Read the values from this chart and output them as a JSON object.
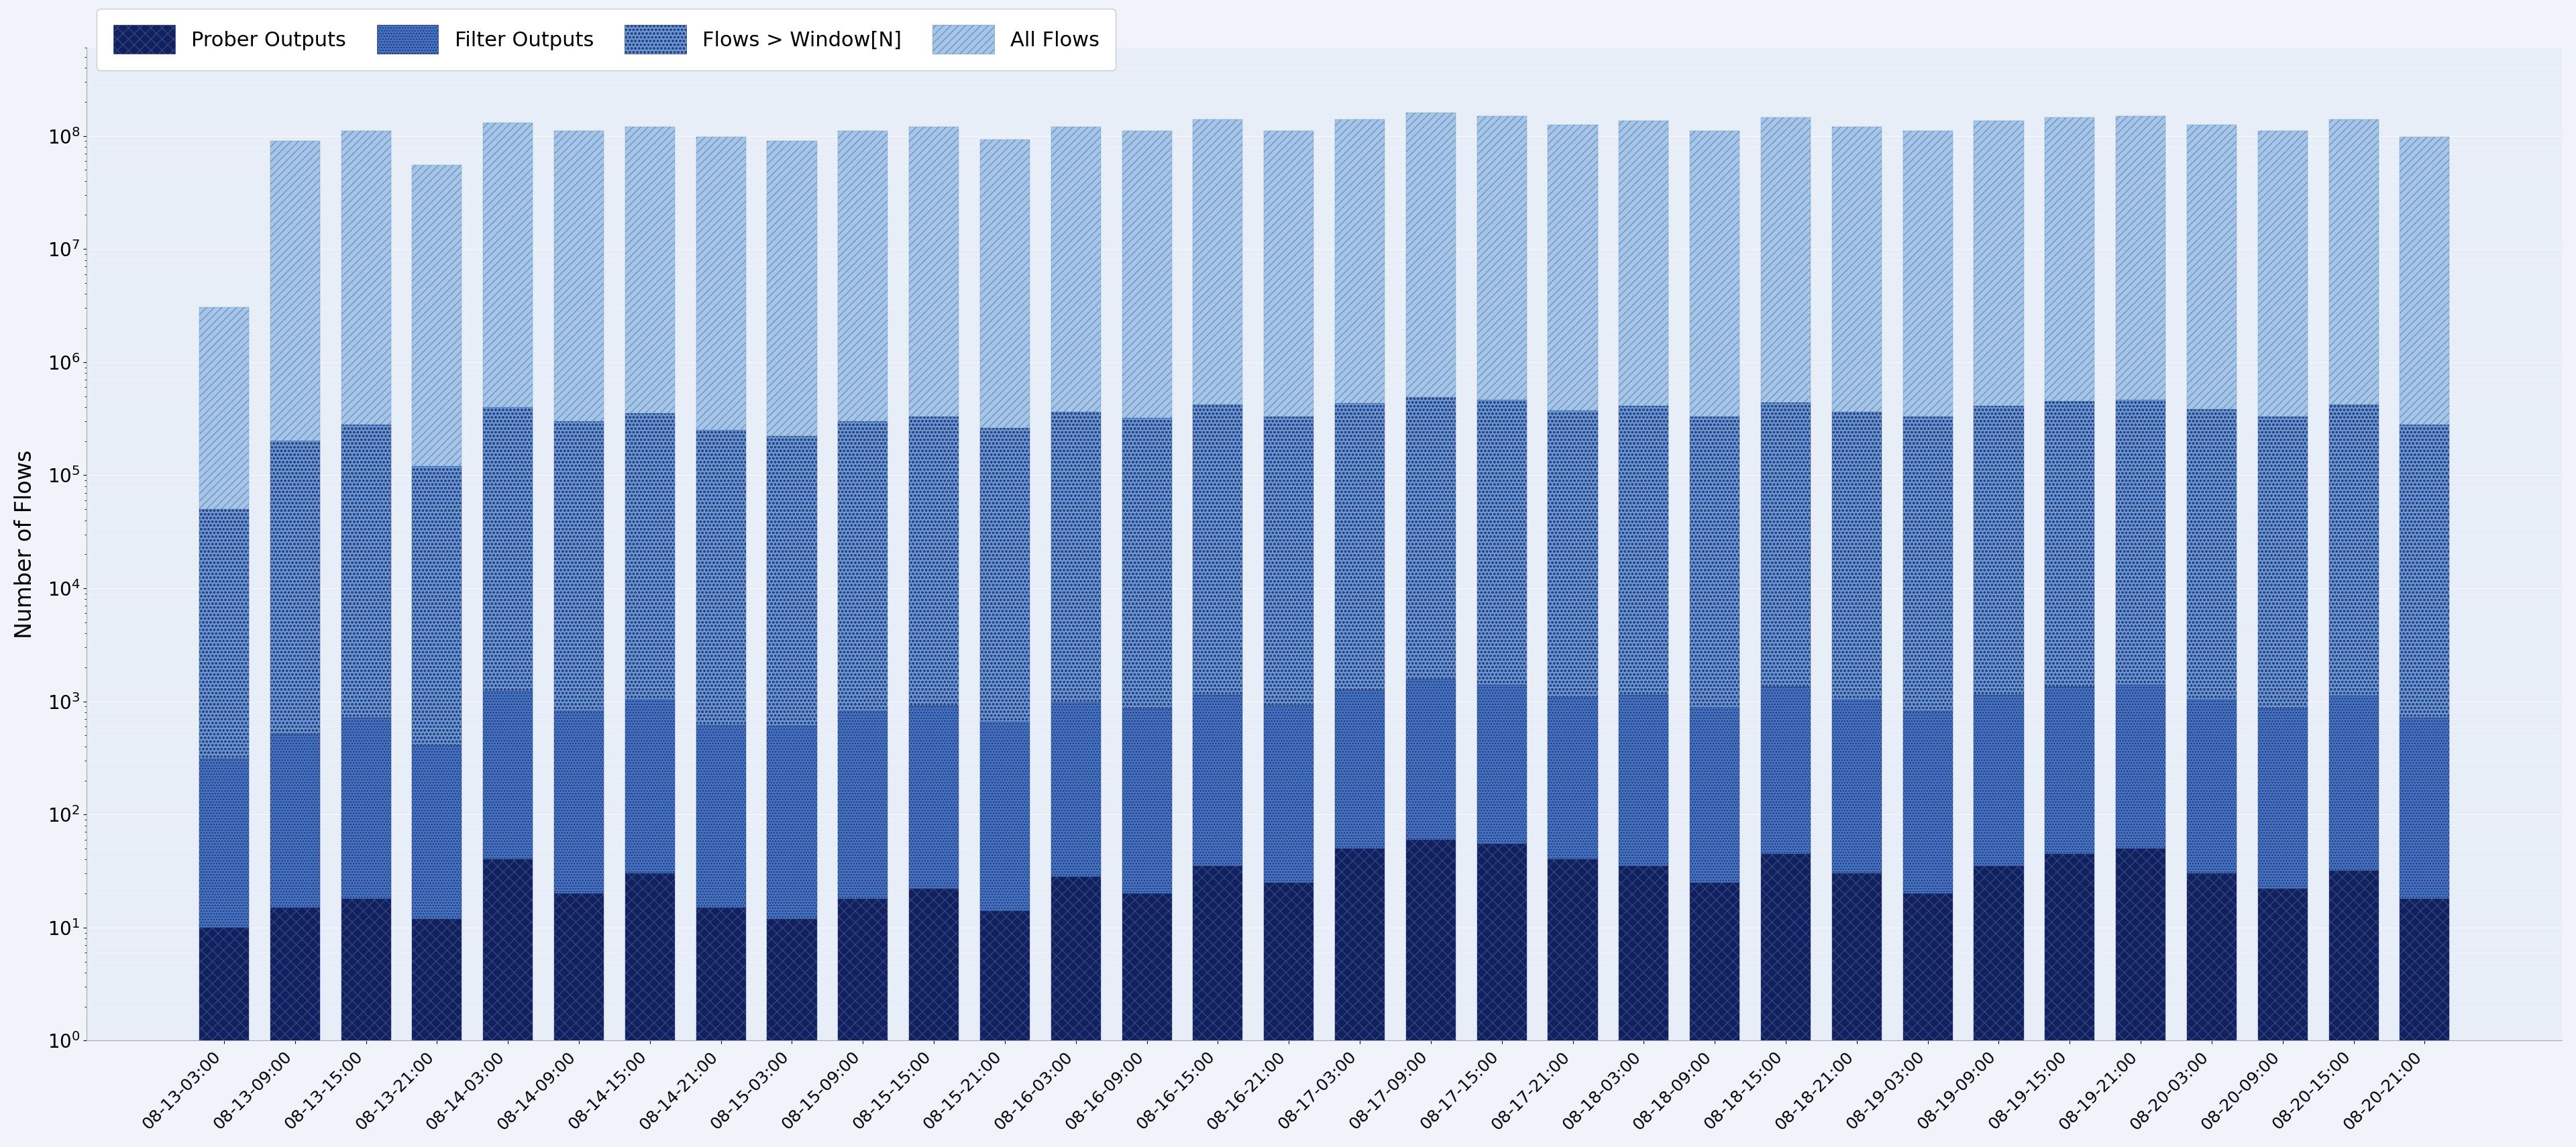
{
  "title": "",
  "ylabel": "Number of Flows",
  "xlabel": "",
  "background_color": "#f0f4fa",
  "plot_bg_color": "#e8eef8",
  "ylim_log": [
    1,
    500000000.0
  ],
  "series_labels": [
    "Prober Outputs",
    "Filter Outputs",
    "Flows > Window[N]",
    "All Flows"
  ],
  "colors": [
    "#102060",
    "#4472c4",
    "#6699dd",
    "#a8c4e8"
  ],
  "hatch_colors": [
    "#ffffff",
    "#102060",
    "#102060",
    "#4472c4"
  ],
  "categories": [
    "08-13-03:00",
    "08-13-09:00",
    "08-13-15:00",
    "08-13-21:00",
    "08-14-03:00",
    "08-14-09:00",
    "08-14-15:00",
    "08-14-21:00",
    "08-15-03:00",
    "08-15-09:00",
    "08-15-15:00",
    "08-15-21:00",
    "08-16-03:00",
    "08-16-09:00",
    "08-16-15:00",
    "08-16-21:00",
    "08-17-03:00",
    "08-17-09:00",
    "08-17-15:00",
    "08-17-21:00",
    "08-18-03:00",
    "08-18-09:00",
    "08-18-15:00",
    "08-18-21:00",
    "08-19-03:00",
    "08-19-09:00",
    "08-19-15:00",
    "08-19-21:00",
    "08-20-03:00",
    "08-20-09:00",
    "08-20-15:00",
    "08-20-21:00"
  ],
  "prober_outputs": [
    10,
    15,
    18,
    12,
    40,
    20,
    30,
    15,
    12,
    18,
    22,
    14,
    28,
    20,
    35,
    25,
    50,
    60,
    55,
    40,
    35,
    25,
    45,
    30,
    20,
    35,
    45,
    50,
    30,
    22,
    32,
    18
  ],
  "filter_outputs": [
    300,
    500,
    700,
    400,
    1200,
    800,
    1000,
    600,
    600,
    800,
    900,
    650,
    950,
    850,
    1100,
    900,
    1200,
    1500,
    1350,
    1050,
    1100,
    850,
    1300,
    1000,
    800,
    1100,
    1300,
    1350,
    1000,
    850,
    1100,
    700
  ],
  "flows_window": [
    50000,
    200000,
    280000,
    120000,
    400000,
    300000,
    350000,
    250000,
    220000,
    300000,
    330000,
    260000,
    360000,
    320000,
    420000,
    330000,
    430000,
    490000,
    460000,
    370000,
    410000,
    330000,
    440000,
    360000,
    330000,
    410000,
    450000,
    460000,
    380000,
    330000,
    420000,
    280000
  ],
  "all_flows": [
    3000000,
    90000000,
    110000000,
    55000000,
    130000000,
    110000000,
    120000000,
    98000000,
    90000000,
    110000000,
    120000000,
    93000000,
    120000000,
    110000000,
    140000000,
    110000000,
    140000000,
    160000000,
    150000000,
    125000000,
    135000000,
    110000000,
    145000000,
    120000000,
    110000000,
    135000000,
    145000000,
    150000000,
    125000000,
    110000000,
    140000000,
    98000000
  ]
}
